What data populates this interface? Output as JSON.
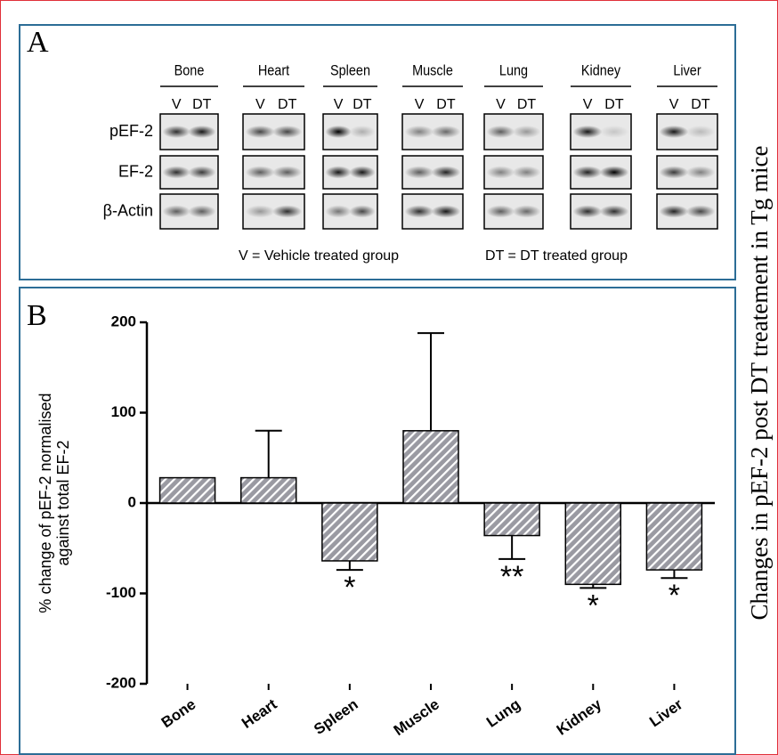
{
  "panel_a": {
    "label": "A",
    "tissues": [
      "Bone",
      "Heart",
      "Spleen",
      "Muscle",
      "Lung",
      "Kidney",
      "Liver"
    ],
    "lanes": [
      "V",
      "DT"
    ],
    "rows": [
      "pEF-2",
      "EF-2",
      "β-Actin"
    ],
    "legend": [
      "V = Vehicle treated group",
      "DT = DT treated group"
    ]
  },
  "side_title": "Changes in pEF-2 post DT treatement in Tg mice",
  "chart_data": {
    "type": "bar",
    "panel_label": "B",
    "y_label": [
      "% change of pEF-2 normalised",
      "against total EF-2"
    ],
    "categories": [
      "Bone",
      "Heart",
      "Spleen",
      "Muscle",
      "Lung",
      "Kidney",
      "Liver"
    ],
    "values": [
      28,
      28,
      -64,
      80,
      -36,
      -90,
      -74
    ],
    "errors": [
      null,
      52,
      10,
      108,
      26,
      4,
      9
    ],
    "annotations": [
      null,
      null,
      "*",
      null,
      "**",
      "*",
      "*"
    ],
    "ylim": [
      -200,
      200
    ],
    "yticks": [
      -200,
      -100,
      0,
      100,
      200
    ],
    "color": "#9a9aa2"
  }
}
